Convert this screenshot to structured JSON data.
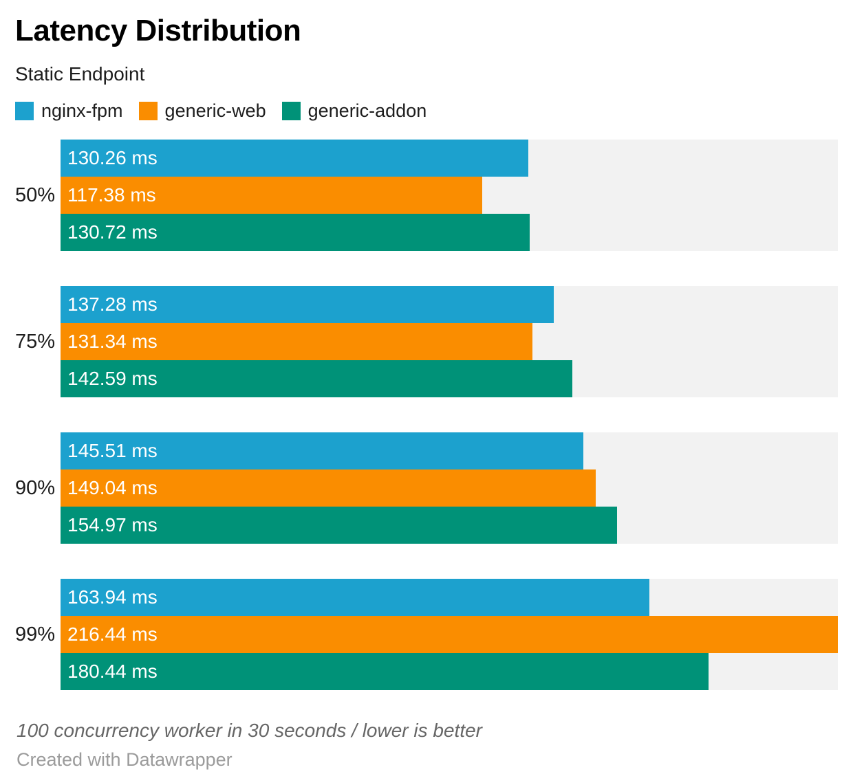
{
  "header": {
    "title": "Latency Distribution",
    "subtitle": "Static Endpoint"
  },
  "chart_data": {
    "type": "bar",
    "orientation": "horizontal",
    "title": "Latency Distribution",
    "subtitle": "Static Endpoint",
    "unit": "ms",
    "xlim": [
      0,
      216.44
    ],
    "grid": false,
    "legend_position": "top",
    "track_color": "#f2f2f2",
    "value_label_color": "#ffffff",
    "categories": [
      "50%",
      "75%",
      "90%",
      "99%"
    ],
    "series": [
      {
        "name": "nginx-fpm",
        "color": "#1ca1ce",
        "values": [
          130.26,
          137.28,
          145.51,
          163.94
        ],
        "labels": [
          "130.26 ms",
          "137.28 ms",
          "145.51 ms",
          "163.94 ms"
        ]
      },
      {
        "name": "generic-web",
        "color": "#fa8d00",
        "values": [
          117.38,
          131.34,
          149.04,
          216.44
        ],
        "labels": [
          "117.38 ms",
          "131.34 ms",
          "149.04 ms",
          "216.44 ms"
        ]
      },
      {
        "name": "generic-addon",
        "color": "#009278",
        "values": [
          130.72,
          142.59,
          154.97,
          180.44
        ],
        "labels": [
          "130.72 ms",
          "142.59 ms",
          "154.97 ms",
          "180.44 ms"
        ]
      }
    ]
  },
  "footer": {
    "note": "100 concurrency worker in 30 seconds / lower is better",
    "attribution": "Created with Datawrapper"
  }
}
